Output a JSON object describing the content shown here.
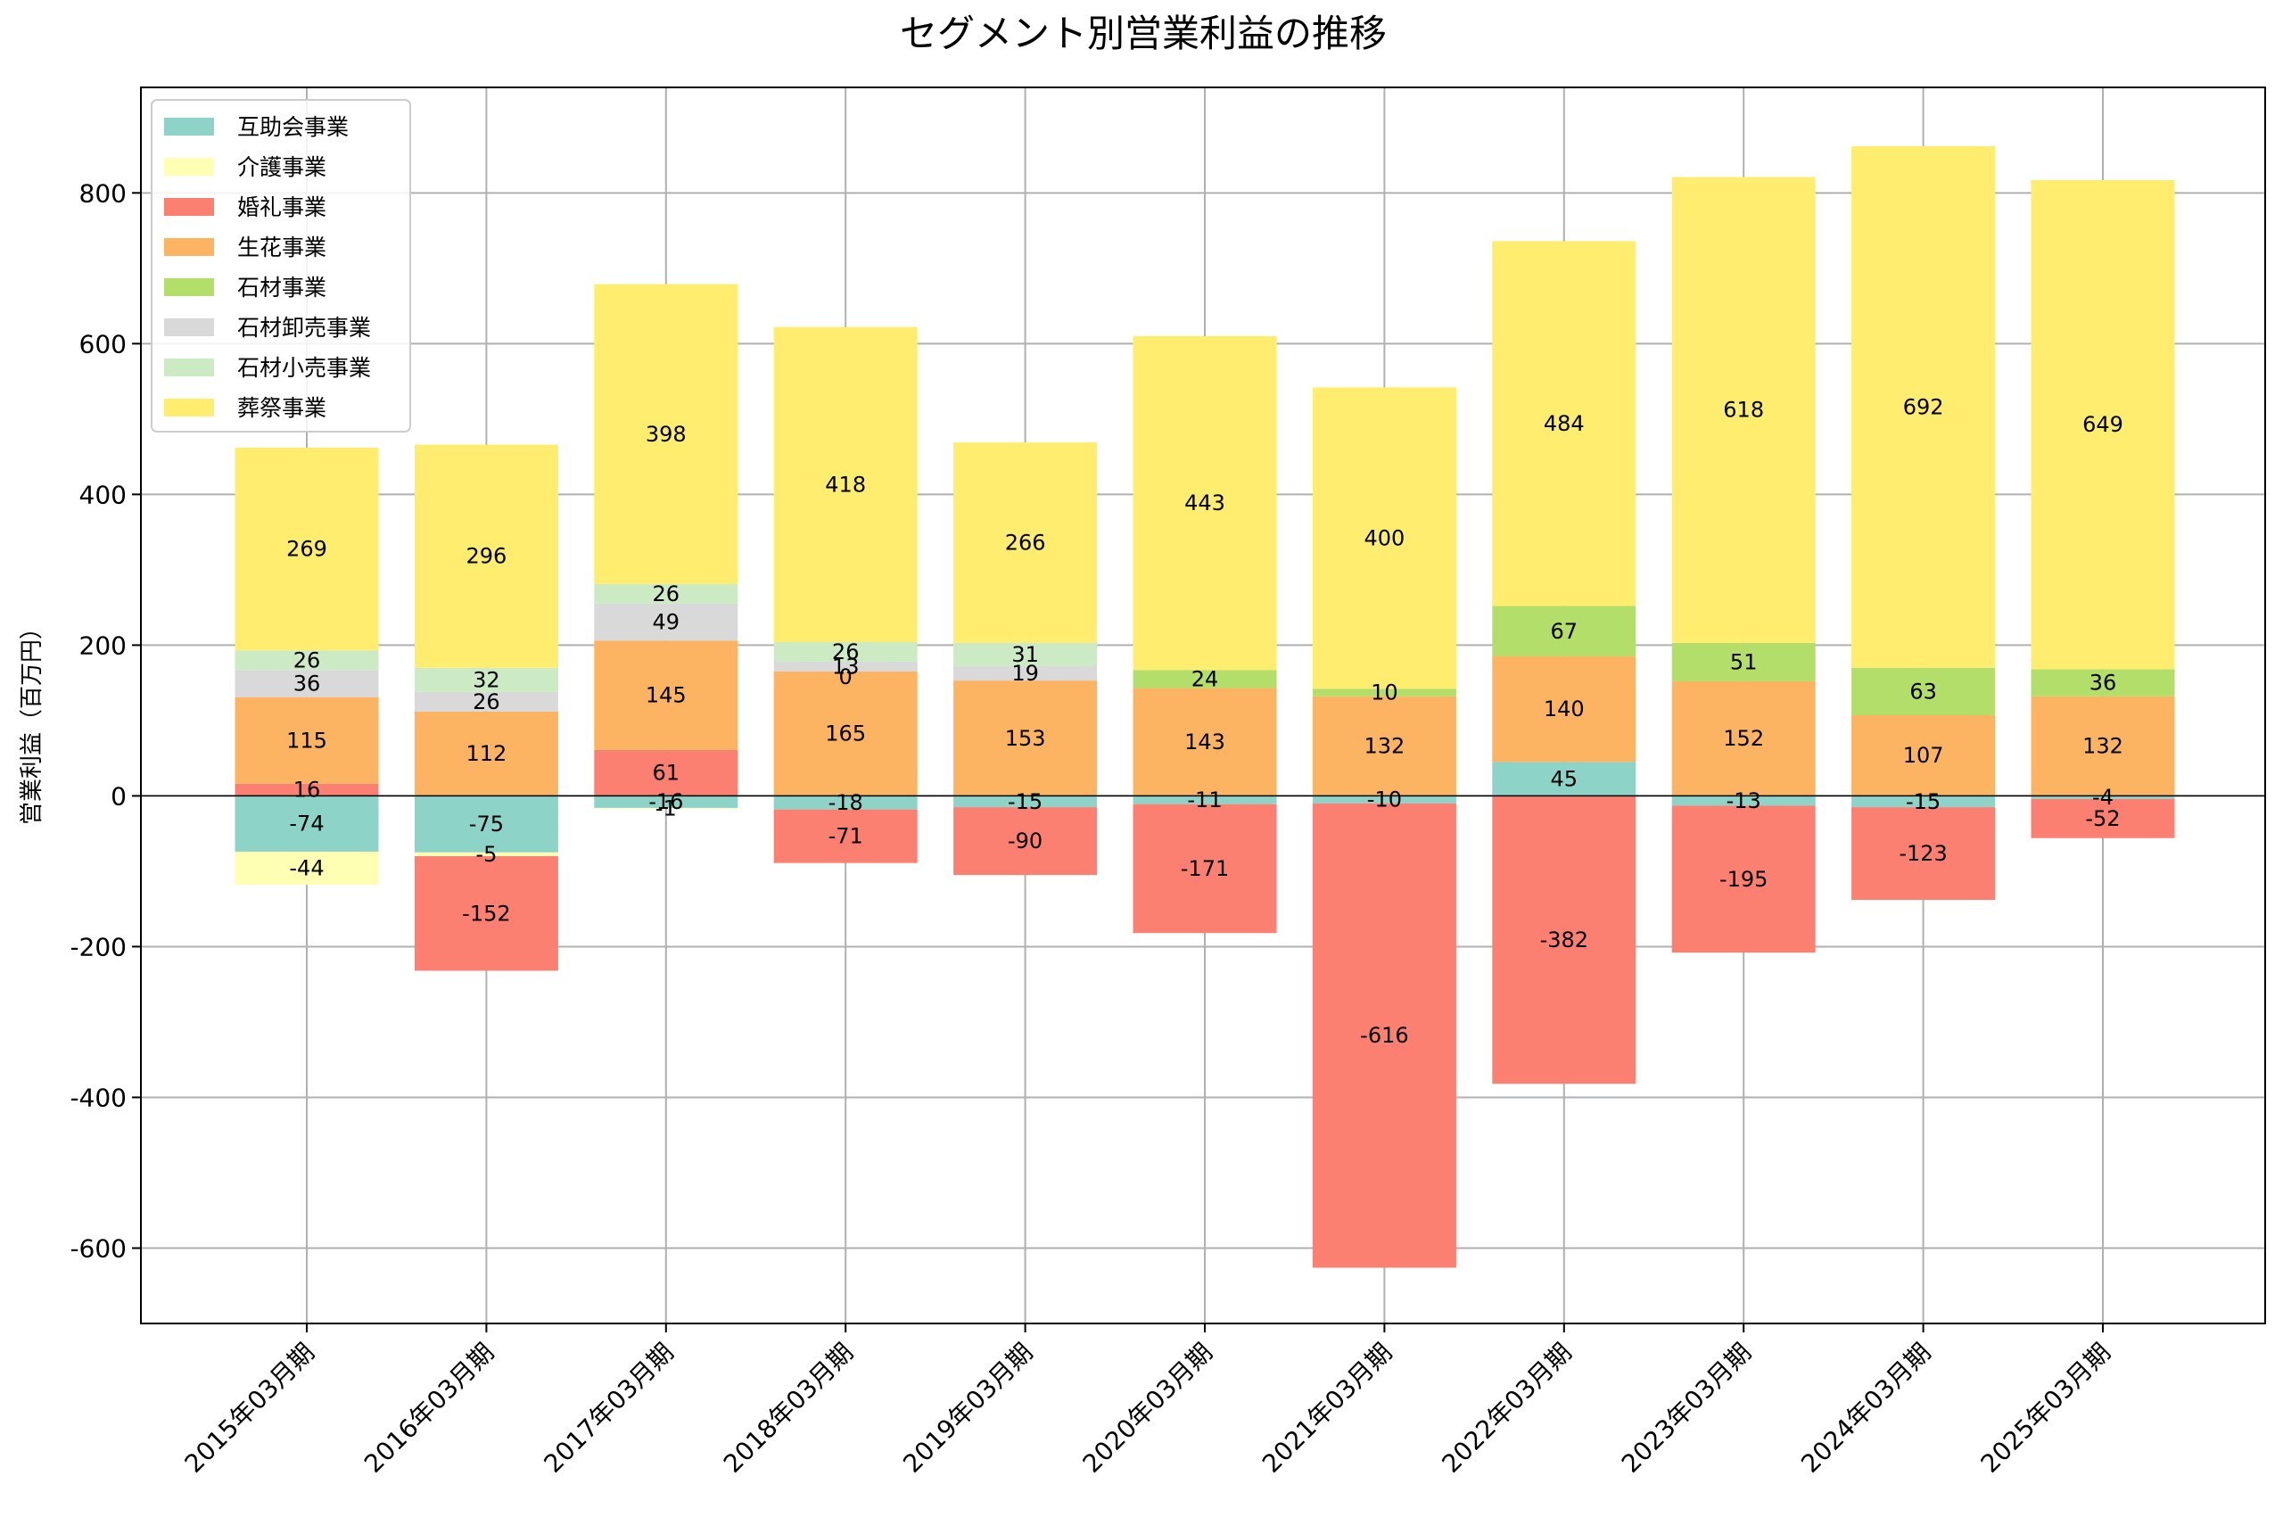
{
  "chart_data": {
    "type": "bar",
    "stacked": true,
    "title": "セグメント別営業利益の推移",
    "xlabel": "",
    "ylabel": "営業利益（百万円）",
    "ylim": [
      -700,
      940
    ],
    "yticks": [
      -600,
      -400,
      -200,
      0,
      200,
      400,
      600,
      800
    ],
    "ytick_labels": [
      "-600",
      "-400",
      "-200",
      "0",
      "200",
      "400",
      "600",
      "800"
    ],
    "grid": true,
    "legend_position": "top-left",
    "categories": [
      "2015年03月期",
      "2016年03月期",
      "2017年03月期",
      "2018年03月期",
      "2019年03月期",
      "2020年03月期",
      "2021年03月期",
      "2022年03月期",
      "2023年03月期",
      "2024年03月期",
      "2025年03月期"
    ],
    "series": [
      {
        "name": "互助会事業",
        "color": "#8dd3c7",
        "values": [
          -74,
          -75,
          -16,
          -18,
          -15,
          -11,
          -10,
          45,
          -13,
          -15,
          -4
        ]
      },
      {
        "name": "介護事業",
        "color": "#ffffb3",
        "values": [
          -44,
          -5,
          -1,
          null,
          null,
          null,
          null,
          null,
          null,
          null,
          null
        ]
      },
      {
        "name": "婚礼事業",
        "color": "#fb8072",
        "values": [
          16,
          -152,
          61,
          -71,
          -90,
          -171,
          -616,
          -382,
          -195,
          -123,
          -52
        ]
      },
      {
        "name": "生花事業",
        "color": "#fdb462",
        "values": [
          115,
          112,
          145,
          165,
          153,
          143,
          132,
          140,
          152,
          107,
          132
        ]
      },
      {
        "name": "石材事業",
        "color": "#b3de69",
        "values": [
          null,
          null,
          null,
          null,
          null,
          24,
          10,
          67,
          51,
          63,
          36
        ]
      },
      {
        "name": "石材卸売事業",
        "color": "#d9d9d9",
        "values": [
          36,
          26,
          49,
          13,
          19,
          null,
          null,
          null,
          null,
          null,
          null
        ]
      },
      {
        "name": "石材小売事業",
        "color": "#ccebc5",
        "values": [
          26,
          32,
          26,
          26,
          31,
          null,
          null,
          null,
          null,
          null,
          null
        ]
      },
      {
        "name": "葬祭事業",
        "color": "#ffed6f",
        "values": [
          269,
          296,
          398,
          418,
          266,
          443,
          400,
          484,
          618,
          692,
          649
        ]
      }
    ],
    "extra_labels": [
      {
        "category_index": 3,
        "text": "0"
      }
    ]
  }
}
